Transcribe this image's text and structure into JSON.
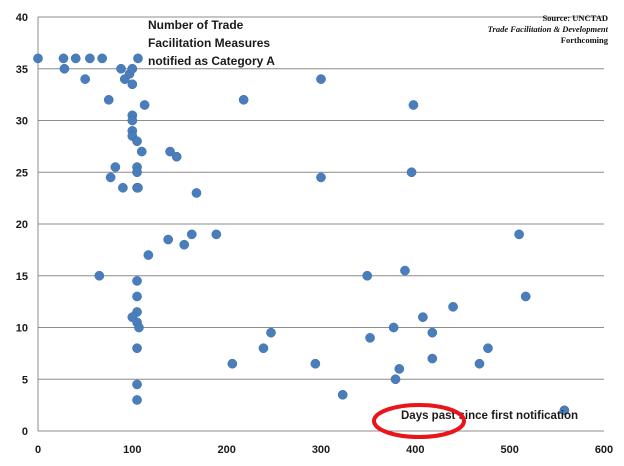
{
  "chart_data": {
    "type": "scatter",
    "title_lines": [
      "Number of Trade",
      "Facilitation Measures",
      "notified as Category A"
    ],
    "source_lines": [
      "Source: UNCTAD",
      "Trade Facilitation & Development",
      "Forthcoming"
    ],
    "annotation": "Days past since first notification",
    "xlim": [
      0,
      600
    ],
    "ylim": [
      0,
      40
    ],
    "xticks": [
      0,
      100,
      200,
      300,
      400,
      500,
      600
    ],
    "yticks": [
      0,
      5,
      10,
      15,
      20,
      25,
      30,
      35,
      40
    ],
    "grid": "horizontal",
    "colors": {
      "points": "#4a7ebb",
      "highlight_ellipse": "#e8151b",
      "gridline": "#8c8c8c"
    },
    "points": [
      [
        0,
        36
      ],
      [
        27,
        36
      ],
      [
        28,
        35
      ],
      [
        40,
        36
      ],
      [
        55,
        36
      ],
      [
        68,
        36
      ],
      [
        88,
        35
      ],
      [
        92,
        34
      ],
      [
        97,
        34.5
      ],
      [
        100,
        35
      ],
      [
        100,
        33.5
      ],
      [
        106,
        36
      ],
      [
        50,
        34
      ],
      [
        75,
        32
      ],
      [
        113,
        31.5
      ],
      [
        100,
        30.5
      ],
      [
        100,
        30
      ],
      [
        100,
        29
      ],
      [
        100,
        28.5
      ],
      [
        105,
        28
      ],
      [
        110,
        27
      ],
      [
        82,
        25.5
      ],
      [
        77,
        24.5
      ],
      [
        105,
        25.5
      ],
      [
        105,
        25
      ],
      [
        90,
        23.5
      ],
      [
        105,
        23.5
      ],
      [
        106,
        23.5
      ],
      [
        140,
        27
      ],
      [
        147,
        26.5
      ],
      [
        168,
        23
      ],
      [
        65,
        15
      ],
      [
        105,
        14.5
      ],
      [
        105,
        13
      ],
      [
        105,
        11.5
      ],
      [
        100,
        11
      ],
      [
        105,
        10.5
      ],
      [
        107,
        10
      ],
      [
        105,
        8
      ],
      [
        105,
        4.5
      ],
      [
        105,
        3
      ],
      [
        117,
        17
      ],
      [
        138,
        18.5
      ],
      [
        155,
        18
      ],
      [
        163,
        19
      ],
      [
        189,
        19
      ],
      [
        218,
        32
      ],
      [
        300,
        34
      ],
      [
        300,
        24.5
      ],
      [
        398,
        31.5
      ],
      [
        396,
        25
      ],
      [
        206,
        6.5
      ],
      [
        239,
        8
      ],
      [
        247,
        9.5
      ],
      [
        294,
        6.5
      ],
      [
        323,
        3.5
      ],
      [
        349,
        15
      ],
      [
        352,
        9
      ],
      [
        389,
        15.5
      ],
      [
        377,
        10
      ],
      [
        379,
        5
      ],
      [
        383,
        6
      ],
      [
        408,
        11
      ],
      [
        418,
        9.5
      ],
      [
        418,
        7
      ],
      [
        440,
        12
      ],
      [
        468,
        6.5
      ],
      [
        477,
        8
      ],
      [
        510,
        19
      ],
      [
        517,
        13
      ],
      [
        558,
        2
      ]
    ]
  }
}
